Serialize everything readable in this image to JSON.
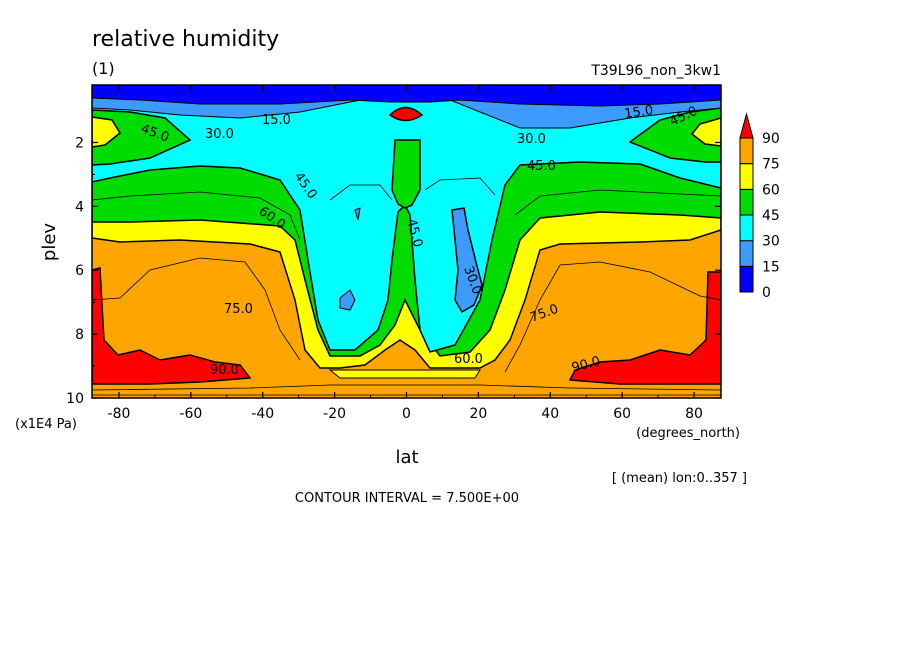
{
  "chart_data": {
    "type": "contour",
    "title": "relative humidity",
    "subtitle": "(1)",
    "run_label": "T39L96_non_3kw1",
    "xlabel": "lat",
    "xunits": "(degrees_north)",
    "ylabel": "plev",
    "yunits": "(x1E4 Pa)",
    "xlim": [
      -87.5,
      87.5
    ],
    "ylim": [
      10,
      0.2
    ],
    "xticks": [
      "-80",
      "-60",
      "-40",
      "-20",
      "0",
      "20",
      "40",
      "60",
      "80"
    ],
    "xtick_values": [
      -80,
      -60,
      -40,
      -20,
      0,
      20,
      40,
      60,
      80
    ],
    "yticks": [
      "2",
      "4",
      "6",
      "8",
      "10"
    ],
    "ytick_values": [
      2,
      4,
      6,
      8,
      10
    ],
    "mean_note": "[ (mean) lon:0..357 ]",
    "contour_interval_note": "CONTOUR INTERVAL = 7.500E+00",
    "contour_labels": [
      "15.0",
      "30.0",
      "45.0",
      "45.0",
      "60.0",
      "75.0",
      "90.0",
      "30.0",
      "60.0",
      "75.0",
      "90.0",
      "45.0",
      "15.0",
      "45.0",
      "30.0",
      "45.0"
    ],
    "colorbar": {
      "levels": [
        "0",
        "15",
        "30",
        "45",
        "60",
        "75",
        "90"
      ],
      "colors": [
        "#0000ff",
        "#3d9bff",
        "#00ffff",
        "#00dc00",
        "#ffff00",
        "#ffa500",
        "#ff0000"
      ]
    }
  }
}
